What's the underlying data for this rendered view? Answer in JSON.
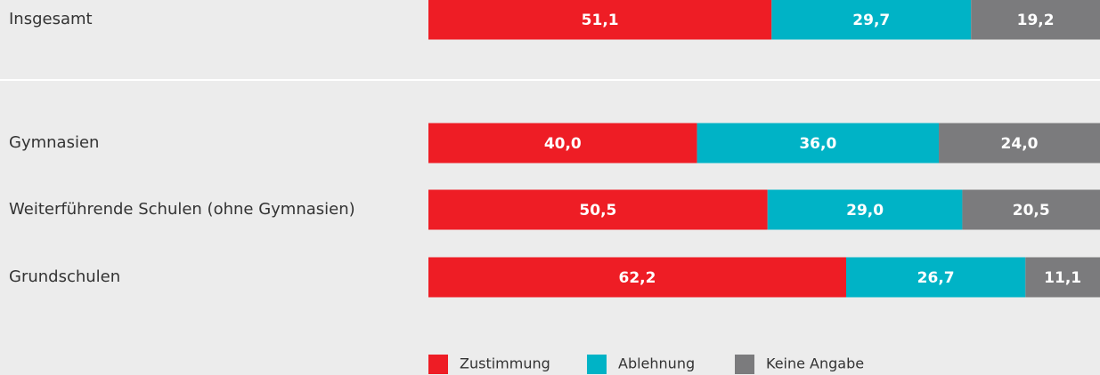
{
  "chart_data": {
    "type": "stacked_bar_horizontal",
    "categories": [
      "Insgesamt",
      "Gymnasien",
      "Weiterführende Schulen (ohne Gymnasien)",
      "Grundschulen"
    ],
    "xlim": [
      0,
      100
    ],
    "series": [
      {
        "name": "Zustimmung",
        "color": "#ee1d25",
        "values": [
          51.1,
          40.0,
          50.5,
          62.2
        ],
        "value_labels": [
          "51,1",
          "40,0",
          "50,5",
          "62,2"
        ]
      },
      {
        "name": "Ablehnung",
        "color": "#00b3c6",
        "values": [
          29.7,
          36.0,
          29.0,
          26.7
        ],
        "value_labels": [
          "29,7",
          "36,0",
          "29,0",
          "26,7"
        ]
      },
      {
        "name": "Keine Angabe",
        "color": "#7b7b7d",
        "values": [
          19.2,
          24.0,
          20.5,
          11.1
        ],
        "value_labels": [
          "19,2",
          "24,0",
          "20,5",
          "11,1"
        ]
      }
    ],
    "legend": "bottom"
  }
}
